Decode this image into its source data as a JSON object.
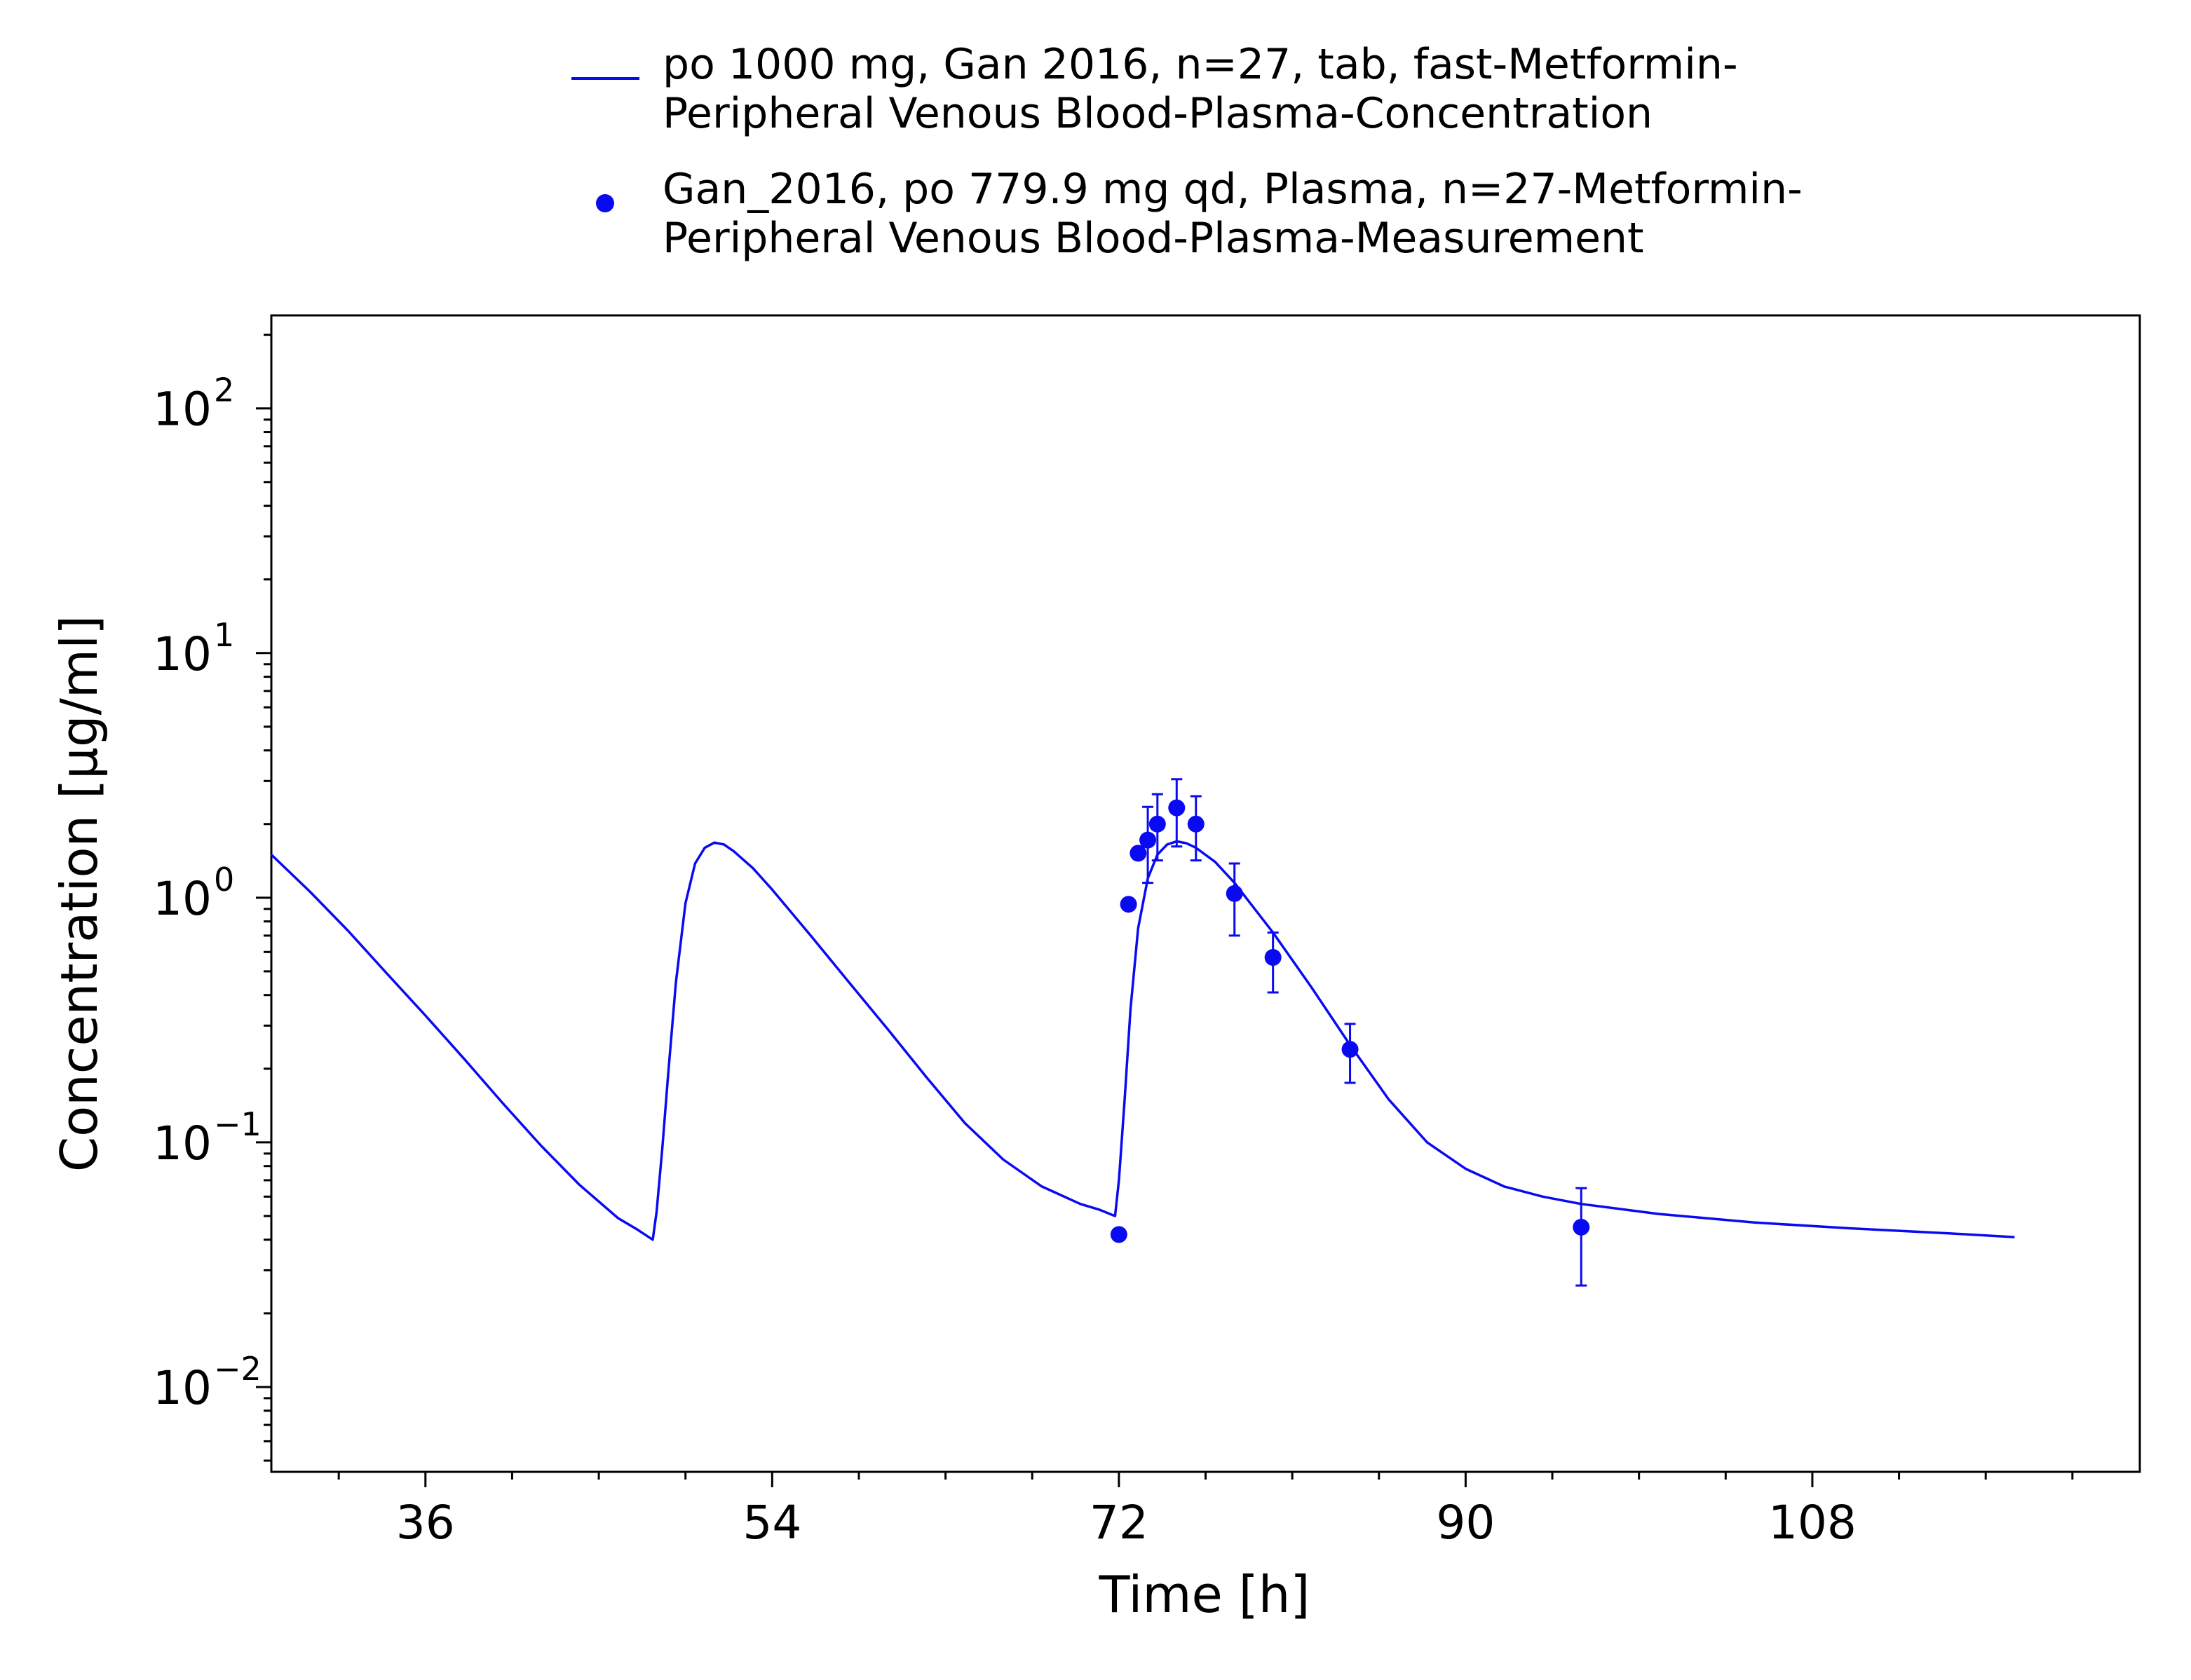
{
  "chart_data": {
    "type": "line",
    "xlabel": "Time [h]",
    "ylabel": "Concentration [µg/ml]",
    "xlim": [
      28,
      125
    ],
    "ylim": [
      0.0045,
      240
    ],
    "y_scale": "log",
    "grid": false,
    "legend_position": "top",
    "x_ticks": [
      36,
      54,
      72,
      90,
      108
    ],
    "y_ticks": [
      {
        "value": 0.01,
        "label": "10",
        "exp": "−2"
      },
      {
        "value": 0.1,
        "label": "10",
        "exp": "−1"
      },
      {
        "value": 1,
        "label": "10",
        "exp": "0"
      },
      {
        "value": 10,
        "label": "10",
        "exp": "1"
      },
      {
        "value": 100,
        "label": "10",
        "exp": "2"
      }
    ],
    "color": "#0a0af2",
    "series": [
      {
        "name": "po 1000 mg, Gan 2016, n=27, tab, fast-Metformin-Peripheral Venous Blood-Plasma-Concentration",
        "name_lines": [
          "po 1000 mg, Gan 2016, n=27, tab, fast-Metformin-",
          "Peripheral Venous Blood-Plasma-Concentration"
        ],
        "kind": "line",
        "x": [
          28,
          30,
          32,
          34,
          36,
          38,
          40,
          42,
          44,
          46,
          47,
          47.8,
          48,
          48.3,
          48.6,
          49,
          49.5,
          50,
          50.5,
          51,
          51.5,
          52,
          53,
          54,
          56,
          58,
          60,
          62,
          64,
          66,
          68,
          70,
          71,
          71.8,
          72,
          72.3,
          72.6,
          73,
          73.5,
          74,
          74.5,
          75,
          75.5,
          76,
          77,
          78,
          80,
          82,
          84,
          86,
          88,
          90,
          92,
          94,
          96,
          100,
          105,
          110,
          115,
          118.5
        ],
        "y": [
          1.5,
          1.06,
          0.73,
          0.49,
          0.33,
          0.22,
          0.145,
          0.097,
          0.067,
          0.049,
          0.044,
          0.04,
          0.052,
          0.095,
          0.19,
          0.45,
          0.95,
          1.38,
          1.6,
          1.68,
          1.65,
          1.55,
          1.32,
          1.08,
          0.7,
          0.45,
          0.29,
          0.185,
          0.12,
          0.085,
          0.066,
          0.056,
          0.053,
          0.05,
          0.07,
          0.15,
          0.35,
          0.75,
          1.2,
          1.5,
          1.65,
          1.7,
          1.67,
          1.6,
          1.4,
          1.15,
          0.72,
          0.43,
          0.25,
          0.15,
          0.1,
          0.078,
          0.066,
          0.06,
          0.056,
          0.051,
          0.047,
          0.0445,
          0.0425,
          0.041
        ]
      },
      {
        "name": "Gan_2016, po 779.9 mg qd, Plasma, n=27-Metformin-Peripheral Venous Blood-Plasma-Measurement",
        "name_lines": [
          "Gan_2016, po 779.9 mg qd, Plasma, n=27-Metformin-",
          "Peripheral Venous Blood-Plasma-Measurement"
        ],
        "kind": "scatter",
        "points": [
          {
            "x": 72,
            "y": 0.042
          },
          {
            "x": 72.5,
            "y": 0.94
          },
          {
            "x": 73,
            "y": 1.52
          },
          {
            "x": 73.5,
            "y": 1.72,
            "lo": 1.15,
            "hi": 2.35
          },
          {
            "x": 74,
            "y": 2.0,
            "lo": 1.42,
            "hi": 2.65
          },
          {
            "x": 75,
            "y": 2.33,
            "lo": 1.62,
            "hi": 3.05
          },
          {
            "x": 76,
            "y": 2.0,
            "lo": 1.42,
            "hi": 2.6
          },
          {
            "x": 78,
            "y": 1.04,
            "lo": 0.7,
            "hi": 1.38
          },
          {
            "x": 80,
            "y": 0.57,
            "lo": 0.41,
            "hi": 0.72
          },
          {
            "x": 84,
            "y": 0.24,
            "lo": 0.175,
            "hi": 0.305
          },
          {
            "x": 96,
            "y": 0.045,
            "lo": 0.026,
            "hi": 0.065
          }
        ]
      }
    ]
  }
}
